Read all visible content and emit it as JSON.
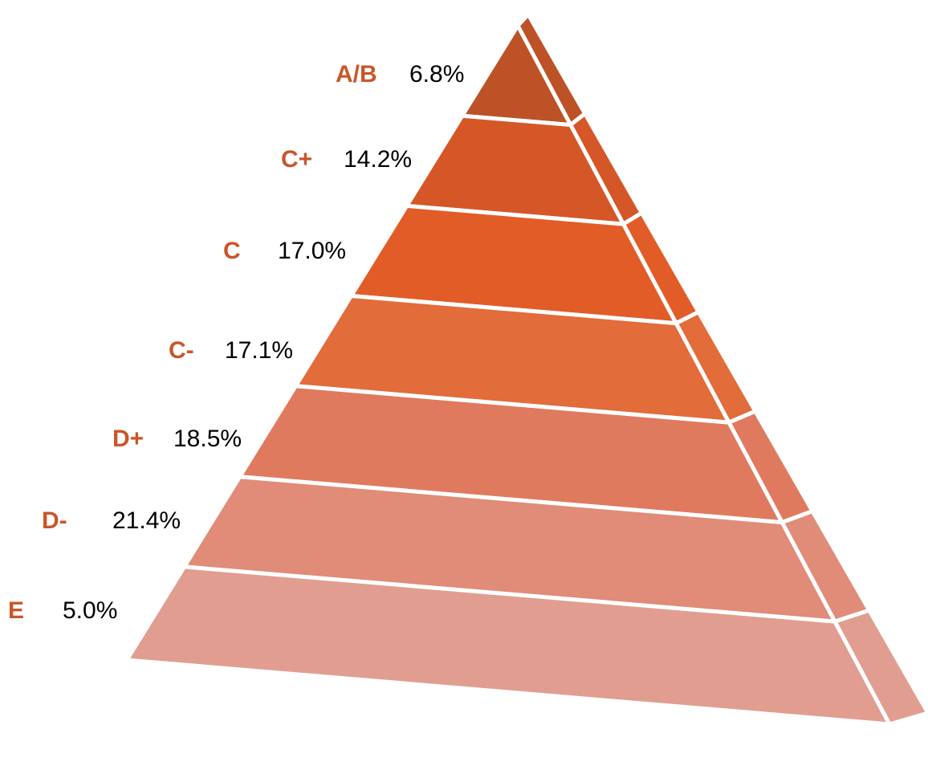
{
  "chart_data": {
    "type": "pyramid",
    "title": "",
    "label_color": "#c9562a",
    "layers": [
      {
        "grade": "A/B",
        "percent_label": "6.8%",
        "value": 6.8,
        "color": "#bd5227",
        "side_color": "#bd5227"
      },
      {
        "grade": "C+",
        "percent_label": "14.2%",
        "value": 14.2,
        "color": "#d55727",
        "side_color": "#d55727"
      },
      {
        "grade": "C",
        "percent_label": "17.0%",
        "value": 17.0,
        "color": "#e25c27",
        "side_color": "#e25c27"
      },
      {
        "grade": "C-",
        "percent_label": "17.1%",
        "value": 17.1,
        "color": "#e26c3a",
        "side_color": "#e26c3a"
      },
      {
        "grade": "D+",
        "percent_label": "18.5%",
        "value": 18.5,
        "color": "#e07a5e",
        "side_color": "#e07a5e"
      },
      {
        "grade": "D-",
        "percent_label": "21.4%",
        "value": 21.4,
        "color": "#e08c78",
        "side_color": "#e08c78"
      },
      {
        "grade": "E",
        "percent_label": "5.0%",
        "value": 5.0,
        "color": "#e19e90",
        "side_color": "#e19e90"
      }
    ]
  }
}
